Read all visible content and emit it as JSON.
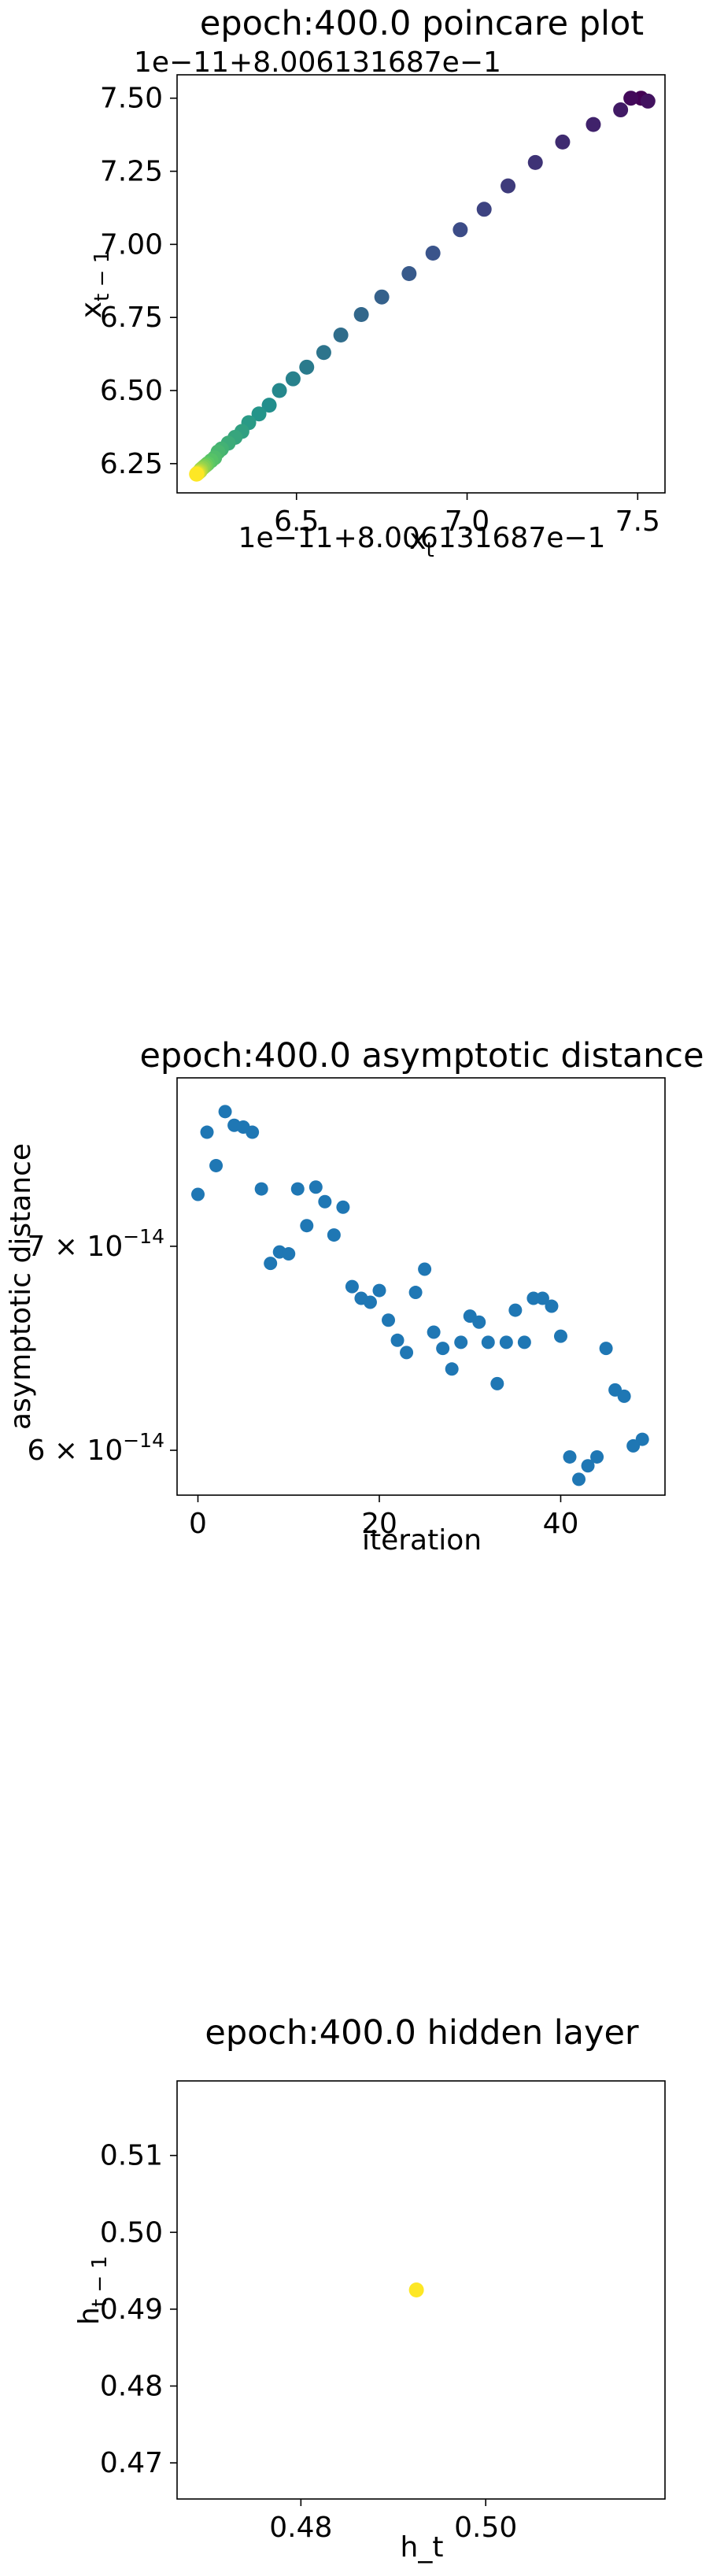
{
  "chart_data": [
    {
      "type": "scatter",
      "title": "epoch:400.0 poincare plot",
      "xlabel": "x_t",
      "ylabel": "x_{t-1}",
      "x_offset_label": "1e−11+8.006131687e−1",
      "y_offset_label": "1e−11+8.006131687e−1",
      "xlim": [
        6.15,
        7.58
      ],
      "ylim": [
        6.15,
        7.58
      ],
      "xticks": [
        6.5,
        7.0,
        7.5
      ],
      "xtick_labels": [
        "6.5",
        "7.0",
        "7.5"
      ],
      "yticks": [
        6.25,
        6.5,
        6.75,
        7.0,
        7.25,
        7.5
      ],
      "ytick_labels": [
        "6.25",
        "6.50",
        "6.75",
        "7.00",
        "7.25",
        "7.50"
      ],
      "colormap": [
        "#440154",
        "#3b528b",
        "#21918c",
        "#5ec962",
        "#fde725"
      ],
      "points": [
        [
          7.51,
          7.5
        ],
        [
          7.48,
          7.5
        ],
        [
          7.53,
          7.49
        ],
        [
          7.45,
          7.46
        ],
        [
          7.37,
          7.41
        ],
        [
          7.28,
          7.35
        ],
        [
          7.2,
          7.28
        ],
        [
          7.12,
          7.2
        ],
        [
          7.05,
          7.12
        ],
        [
          6.98,
          7.05
        ],
        [
          6.9,
          6.97
        ],
        [
          6.83,
          6.9
        ],
        [
          6.75,
          6.82
        ],
        [
          6.69,
          6.76
        ],
        [
          6.63,
          6.69
        ],
        [
          6.58,
          6.63
        ],
        [
          6.53,
          6.58
        ],
        [
          6.49,
          6.54
        ],
        [
          6.45,
          6.5
        ],
        [
          6.42,
          6.45
        ],
        [
          6.39,
          6.42
        ],
        [
          6.36,
          6.39
        ],
        [
          6.34,
          6.36
        ],
        [
          6.32,
          6.34
        ],
        [
          6.3,
          6.32
        ],
        [
          6.28,
          6.3
        ],
        [
          6.27,
          6.29
        ],
        [
          6.26,
          6.27
        ],
        [
          6.25,
          6.26
        ],
        [
          6.24,
          6.25
        ],
        [
          6.235,
          6.245
        ],
        [
          6.23,
          6.24
        ],
        [
          6.225,
          6.235
        ],
        [
          6.22,
          6.23
        ],
        [
          6.218,
          6.225
        ],
        [
          6.215,
          6.222
        ],
        [
          6.212,
          6.219
        ],
        [
          6.21,
          6.217
        ],
        [
          6.208,
          6.215
        ],
        [
          6.207,
          6.214
        ]
      ]
    },
    {
      "type": "scatter",
      "title": "epoch:400.0 asymptotic distance",
      "xlabel": "iteration",
      "ylabel": "asymptotic distance",
      "y_scale": "log",
      "xlim": [
        -2.3,
        51.5
      ],
      "ylim": [
        5.8e-14,
        7.95e-14
      ],
      "xticks": [
        0,
        20,
        40
      ],
      "xtick_labels": [
        "0",
        "20",
        "40"
      ],
      "yticks": [
        6e-14,
        7e-14
      ],
      "ytick_labels": [
        {
          "base": "6 × 10",
          "exp": "−14"
        },
        {
          "base": "7 × 10",
          "exp": "−14"
        }
      ],
      "color": "#1f77b4",
      "x": [
        0,
        1,
        2,
        3,
        4,
        5,
        6,
        7,
        8,
        9,
        10,
        11,
        12,
        13,
        14,
        15,
        16,
        17,
        18,
        19,
        20,
        21,
        22,
        23,
        24,
        25,
        26,
        27,
        28,
        29,
        30,
        31,
        32,
        33,
        34,
        35,
        36,
        37,
        38,
        39,
        40,
        41,
        42,
        43,
        44,
        45,
        46,
        47,
        48,
        49
      ],
      "y": [
        7.28e-14,
        7.63e-14,
        7.44e-14,
        7.75e-14,
        7.67e-14,
        7.66e-14,
        7.63e-14,
        7.31e-14,
        6.91e-14,
        6.97e-14,
        6.96e-14,
        7.31e-14,
        7.11e-14,
        7.32e-14,
        7.24e-14,
        7.06e-14,
        7.21e-14,
        6.79e-14,
        6.73e-14,
        6.71e-14,
        6.77e-14,
        6.62e-14,
        6.52e-14,
        6.46e-14,
        6.76e-14,
        6.88e-14,
        6.56e-14,
        6.48e-14,
        6.38e-14,
        6.51e-14,
        6.64e-14,
        6.61e-14,
        6.51e-14,
        6.31e-14,
        6.51e-14,
        6.67e-14,
        6.51e-14,
        6.73e-14,
        6.73e-14,
        6.69e-14,
        6.54e-14,
        5.97e-14,
        5.87e-14,
        5.93e-14,
        5.97e-14,
        6.48e-14,
        6.28e-14,
        6.25e-14,
        6.02e-14,
        6.05e-14
      ]
    },
    {
      "type": "scatter",
      "title": "epoch:400.0 hidden layer",
      "xlabel": "h_t",
      "ylabel": "h_{t-1}",
      "xlim": [
        0.4666,
        0.5194
      ],
      "ylim": [
        0.4653,
        0.5197
      ],
      "xticks": [
        0.48,
        0.5
      ],
      "xtick_labels": [
        "0.48",
        "0.50"
      ],
      "yticks": [
        0.47,
        0.48,
        0.49,
        0.5,
        0.51
      ],
      "ytick_labels": [
        "0.47",
        "0.48",
        "0.49",
        "0.50",
        "0.51"
      ],
      "color": "#fde725",
      "points": [
        [
          0.4925,
          0.4925
        ]
      ]
    }
  ]
}
